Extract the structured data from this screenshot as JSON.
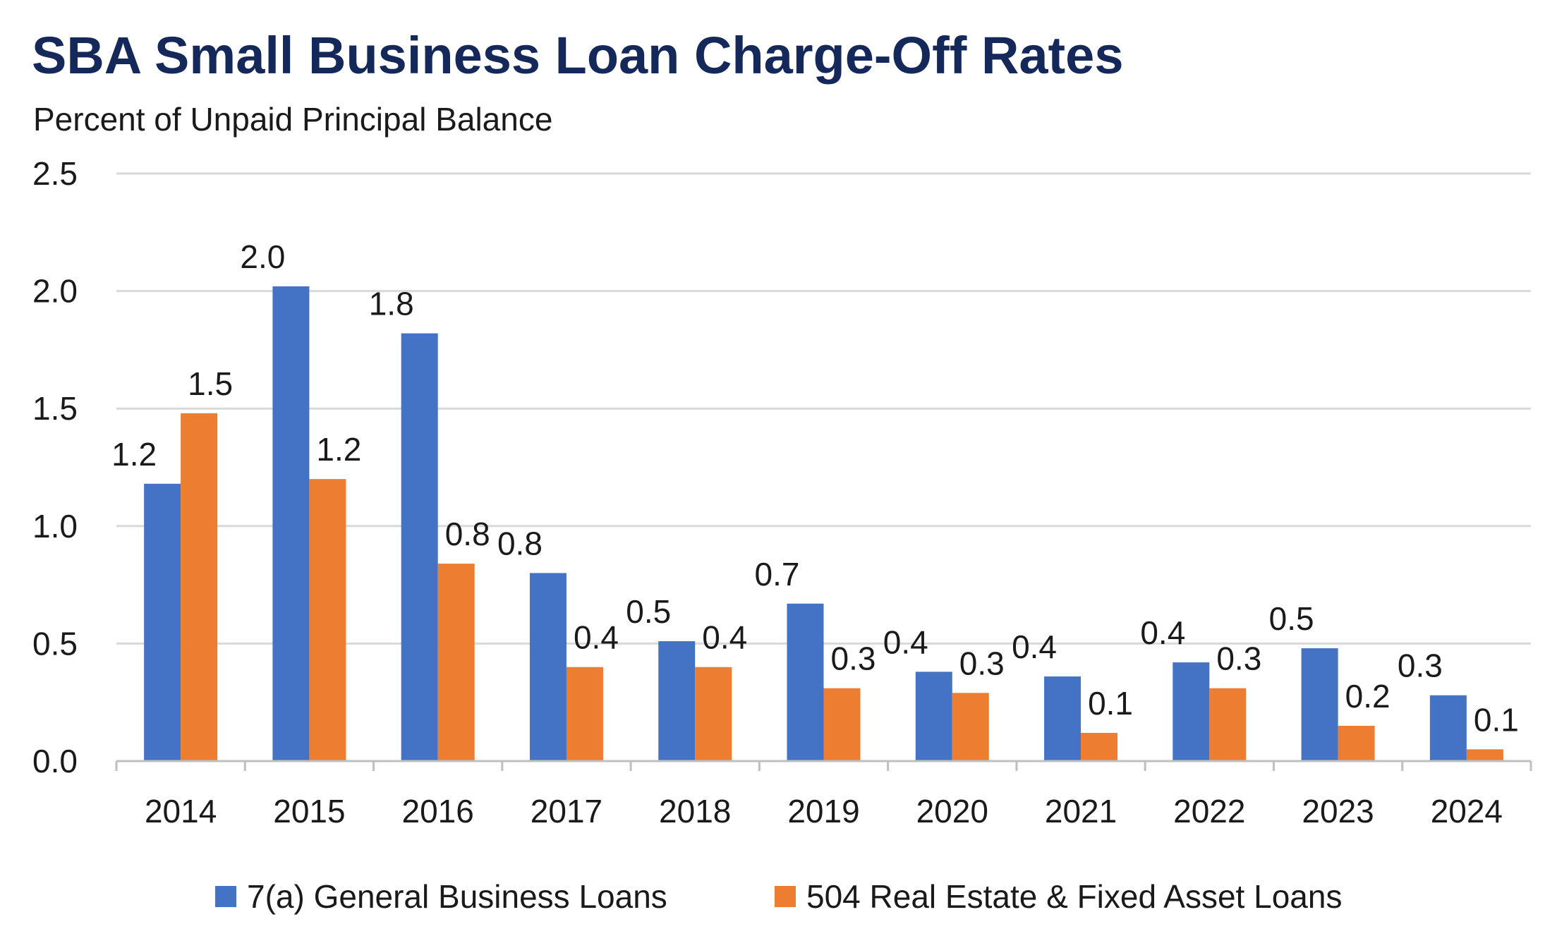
{
  "chart_data": {
    "type": "bar",
    "title": "SBA Small Business Loan Charge-Off Rates",
    "subtitle": "Percent of Unpaid Principal Balance",
    "xlabel": "",
    "ylabel": "",
    "ylim": [
      0,
      2.5
    ],
    "yticks": [
      "0.0",
      "0.5",
      "1.0",
      "1.5",
      "2.0",
      "2.5"
    ],
    "grid": true,
    "legend_position": "bottom",
    "categories": [
      "2014",
      "2015",
      "2016",
      "2017",
      "2018",
      "2019",
      "2020",
      "2021",
      "2022",
      "2023",
      "2024"
    ],
    "series": [
      {
        "name": "7(a) General Business Loans",
        "color": "#4472c4",
        "values": [
          1.18,
          2.02,
          1.82,
          0.8,
          0.51,
          0.67,
          0.38,
          0.36,
          0.42,
          0.48,
          0.28
        ],
        "labels": [
          "1.2",
          "2.0",
          "1.8",
          "0.8",
          "0.5",
          "0.7",
          "0.4",
          "0.4",
          "0.4",
          "0.5",
          "0.3"
        ]
      },
      {
        "name": "504 Real Estate & Fixed Asset Loans",
        "color": "#ed7d31",
        "values": [
          1.48,
          1.2,
          0.84,
          0.4,
          0.4,
          0.31,
          0.29,
          0.12,
          0.31,
          0.15,
          0.05
        ],
        "labels": [
          "1.5",
          "1.2",
          "0.8",
          "0.4",
          "0.4",
          "0.3",
          "0.3",
          "0.1",
          "0.3",
          "0.2",
          "0.1"
        ]
      }
    ]
  }
}
